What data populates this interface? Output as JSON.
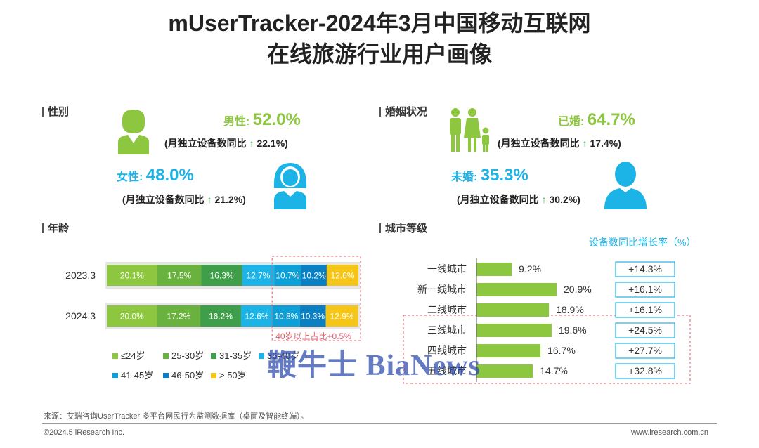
{
  "title_line1": "mUserTracker-2024年3月中国移动互联网",
  "title_line2": "在线旅游行业用户画像",
  "gender": {
    "section": "性别",
    "male_label": "男性:",
    "male_value": "52.0%",
    "male_yoy_prefix": "(月独立设备数同比",
    "male_yoy_value": "22.1%)",
    "female_label": "女性:",
    "female_value": "48.0%",
    "female_yoy_prefix": "(月独立设备数同比",
    "female_yoy_value": "21.2%)",
    "arrow": "↑"
  },
  "marriage": {
    "section": "婚姻状况",
    "married_label": "已婚:",
    "married_value": "64.7%",
    "married_yoy_prefix": "(月独立设备数同比",
    "married_yoy_value": "17.4%)",
    "single_label": "未婚:",
    "single_value": "35.3%",
    "single_yoy_prefix": "(月独立设备数同比",
    "single_yoy_value": "30.2%)",
    "arrow": "↑"
  },
  "age_section": "年龄",
  "city_section": "城市等级",
  "chart_data": [
    {
      "type": "bar",
      "stacked": true,
      "orientation": "horizontal",
      "categories": [
        "2023.3",
        "2024.3"
      ],
      "series": [
        {
          "name": "≤24岁",
          "color": "#8dc63f",
          "values": [
            20.1,
            20.0
          ],
          "labels": [
            "20.1%",
            "20.0%"
          ]
        },
        {
          "name": "25-30岁",
          "color": "#6ab23e",
          "values": [
            17.5,
            17.2
          ],
          "labels": [
            "17.5%",
            "17.2%"
          ]
        },
        {
          "name": "31-35岁",
          "color": "#3f9e4a",
          "values": [
            16.3,
            16.2
          ],
          "labels": [
            "16.3%",
            "16.2%"
          ]
        },
        {
          "name": "36-40岁",
          "color": "#1cb3e6",
          "values": [
            12.7,
            12.6
          ],
          "labels": [
            "12.7%",
            "12.6%"
          ]
        },
        {
          "name": "41-45岁",
          "color": "#0e9fd6",
          "values": [
            10.7,
            10.8
          ],
          "labels": [
            "10.7%",
            "10.8%"
          ]
        },
        {
          "name": "46-50岁",
          "color": "#0a7fc2",
          "values": [
            10.2,
            10.3
          ],
          "labels": [
            "10.2%",
            "10.3%"
          ]
        },
        {
          "name": "> 50岁",
          "color": "#f5c518",
          "values": [
            12.6,
            12.9
          ],
          "labels": [
            "12.6%",
            "12.9%"
          ]
        }
      ],
      "annotation": "40岁以上占比+0.5%",
      "legend_position": "bottom"
    },
    {
      "type": "bar",
      "orientation": "horizontal",
      "categories": [
        "一线城市",
        "新一线城市",
        "二线城市",
        "三线城市",
        "四线城市",
        "五线城市"
      ],
      "values": [
        9.2,
        20.9,
        18.9,
        19.6,
        16.7,
        14.7
      ],
      "value_labels": [
        "9.2%",
        "20.9%",
        "18.9%",
        "19.6%",
        "16.7%",
        "14.7%"
      ],
      "color": "#8dc63f",
      "growth_title": "设备数同比增长率（%）",
      "growth": [
        14.3,
        16.1,
        16.1,
        24.5,
        27.7,
        32.8
      ],
      "growth_labels": [
        "+14.3%",
        "+16.1%",
        "+16.1%",
        "+24.5%",
        "+27.7%",
        "+32.8%"
      ]
    }
  ],
  "watermark": "鞭牛士 BiaNews",
  "footer": {
    "source": "来源：艾瑞咨询UserTracker 多平台网民行为监测数据库（桌面及智能终端）。",
    "copyright": "©2024.5 iResearch Inc.",
    "url": "www.iresearch.com.cn"
  },
  "colors": {
    "green": "#8dc63f",
    "cyan": "#1cb3e6",
    "accent_red": "#e05a6a"
  }
}
